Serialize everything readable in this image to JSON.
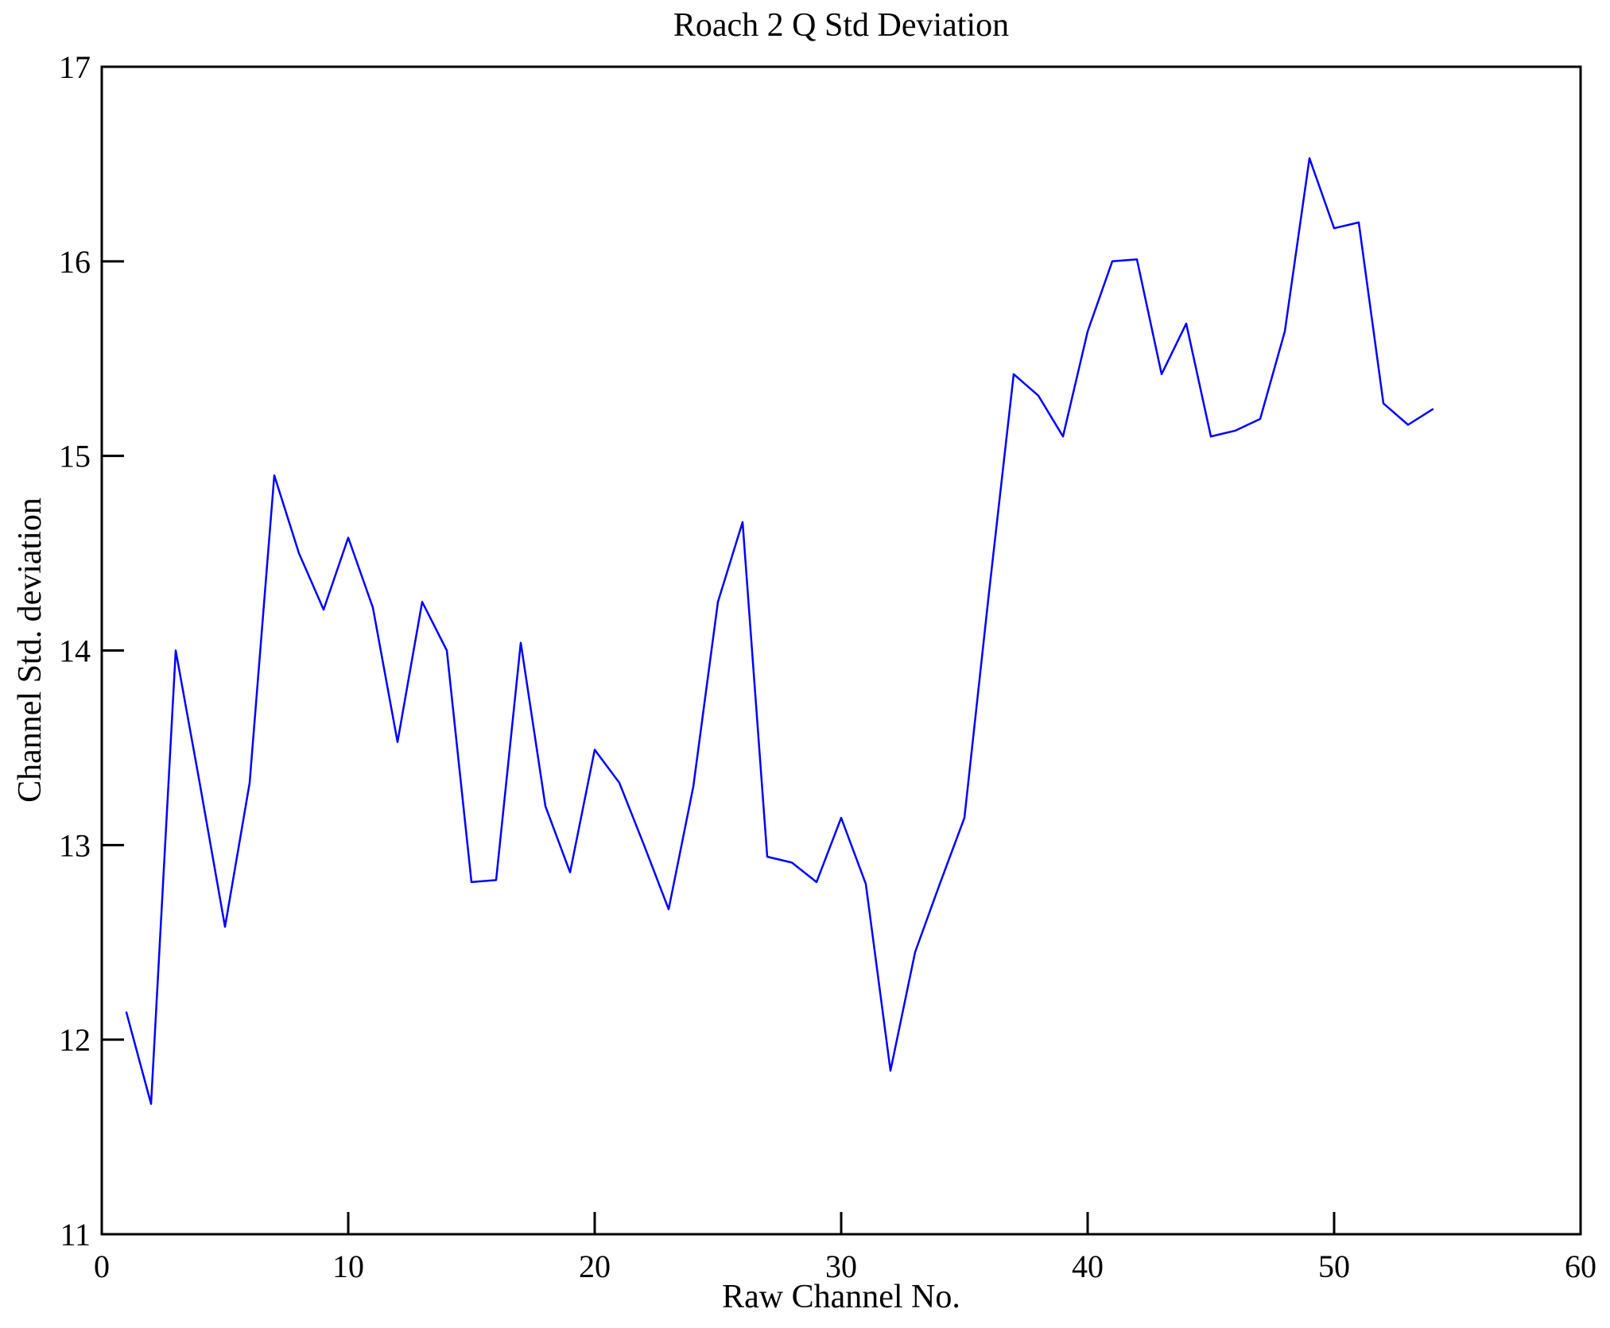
{
  "colors": {
    "background": "#ffffff",
    "axis": "#000000",
    "line": "#0000ff"
  },
  "chart_data": {
    "type": "line",
    "title": "Roach 2 Q Std Deviation",
    "xlabel": "Raw Channel No.",
    "ylabel": "Channel Std. deviation",
    "xlim": [
      0,
      60
    ],
    "ylim": [
      11,
      17
    ],
    "xticks": [
      0,
      10,
      20,
      30,
      40,
      50,
      60
    ],
    "yticks": [
      11,
      12,
      13,
      14,
      15,
      16,
      17
    ],
    "grid": false,
    "legend": "none",
    "x": [
      1,
      2,
      3,
      4,
      5,
      6,
      7,
      8,
      9,
      10,
      11,
      12,
      13,
      14,
      15,
      16,
      17,
      18,
      19,
      20,
      21,
      22,
      23,
      24,
      25,
      26,
      27,
      28,
      29,
      30,
      31,
      32,
      33,
      34,
      35,
      36,
      37,
      38,
      39,
      40,
      41,
      42,
      43,
      44,
      45,
      46,
      47,
      48,
      49,
      50,
      51,
      52,
      53,
      54
    ],
    "y": [
      12.14,
      11.67,
      14.0,
      13.3,
      12.58,
      13.32,
      14.9,
      14.5,
      14.21,
      14.58,
      14.22,
      13.53,
      14.25,
      14.0,
      12.81,
      12.82,
      14.04,
      13.2,
      12.86,
      13.49,
      13.32,
      13.0,
      12.67,
      13.3,
      14.25,
      14.66,
      12.94,
      12.91,
      12.81,
      13.14,
      12.8,
      11.84,
      12.45,
      12.8,
      13.14,
      14.3,
      15.42,
      15.31,
      15.1,
      15.64,
      16.0,
      16.01,
      15.42,
      15.68,
      15.1,
      15.13,
      15.19,
      15.64,
      16.53,
      16.17,
      16.2,
      15.27,
      15.16,
      15.24
    ]
  }
}
